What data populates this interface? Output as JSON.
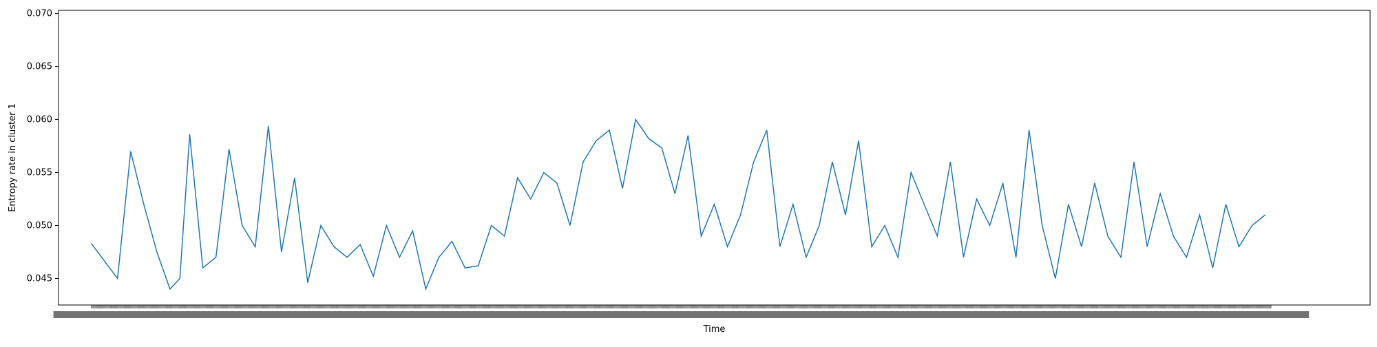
{
  "chart_data": {
    "type": "line",
    "title": "",
    "xlabel": "Time",
    "ylabel": "Entropy rate in cluster 1",
    "ylim": [
      0.0425,
      0.0703
    ],
    "xlim": [
      -50,
      1950
    ],
    "yticks": [
      0.045,
      0.05,
      0.055,
      0.06,
      0.065,
      0.07
    ],
    "ytick_labels": [
      "0.045",
      "0.050",
      "0.055",
      "0.060",
      "0.065",
      "0.070"
    ],
    "x_tick_count": 1800,
    "x_tick_labels_note": "crowded, illegible",
    "grid": false,
    "legend": "none",
    "line_color": "#1f77b4",
    "segments": [
      {
        "x": [
          0,
          40,
          60,
          80,
          100,
          120,
          135,
          150,
          170,
          190,
          210,
          230,
          250,
          270,
          290,
          310,
          330,
          350,
          370,
          390,
          410,
          430,
          450,
          470,
          490,
          510,
          530,
          550,
          570,
          590,
          610,
          630,
          650,
          670,
          690,
          710,
          730,
          750,
          770,
          790,
          810,
          830,
          850,
          870,
          890,
          910,
          930,
          950,
          970,
          990,
          1010,
          1030,
          1050,
          1070,
          1090,
          1110,
          1130,
          1150,
          1170,
          1190,
          1210,
          1230,
          1250,
          1270,
          1290,
          1310,
          1330,
          1350,
          1370,
          1390,
          1410,
          1430,
          1450,
          1470,
          1490,
          1510,
          1530,
          1550,
          1570,
          1590,
          1610,
          1630,
          1650,
          1670,
          1690,
          1710,
          1730,
          1750,
          1770,
          1790
        ],
        "y": [
          0.0483,
          0.045,
          0.057,
          0.052,
          0.0475,
          0.044,
          0.045,
          0.0586,
          0.046,
          0.047,
          0.0572,
          0.05,
          0.048,
          0.0594,
          0.0475,
          0.0545,
          0.0446,
          0.05,
          0.048,
          0.047,
          0.0482,
          0.0452,
          0.05,
          0.047,
          0.0495,
          0.044,
          0.047,
          0.0485,
          0.046,
          0.0462,
          0.05,
          0.049,
          0.0545,
          0.0525,
          0.055,
          0.054,
          0.05,
          0.056,
          0.058,
          0.059,
          0.0535,
          0.06,
          0.0582,
          0.0573,
          0.053,
          0.0585,
          0.049,
          0.052,
          0.048,
          0.051,
          0.056,
          0.059,
          0.048,
          0.052,
          0.047,
          0.05,
          0.056,
          0.051,
          0.058,
          0.048,
          0.05,
          0.047,
          0.055,
          0.052,
          0.049,
          0.056,
          0.047,
          0.0525,
          0.05,
          0.054,
          0.047,
          0.059,
          0.05,
          0.045,
          0.052,
          0.048,
          0.054,
          0.049,
          0.047,
          0.056,
          0.048,
          0.053,
          0.049,
          0.047,
          0.051,
          0.046,
          0.052,
          0.048,
          0.05,
          0.051
        ]
      }
    ]
  }
}
